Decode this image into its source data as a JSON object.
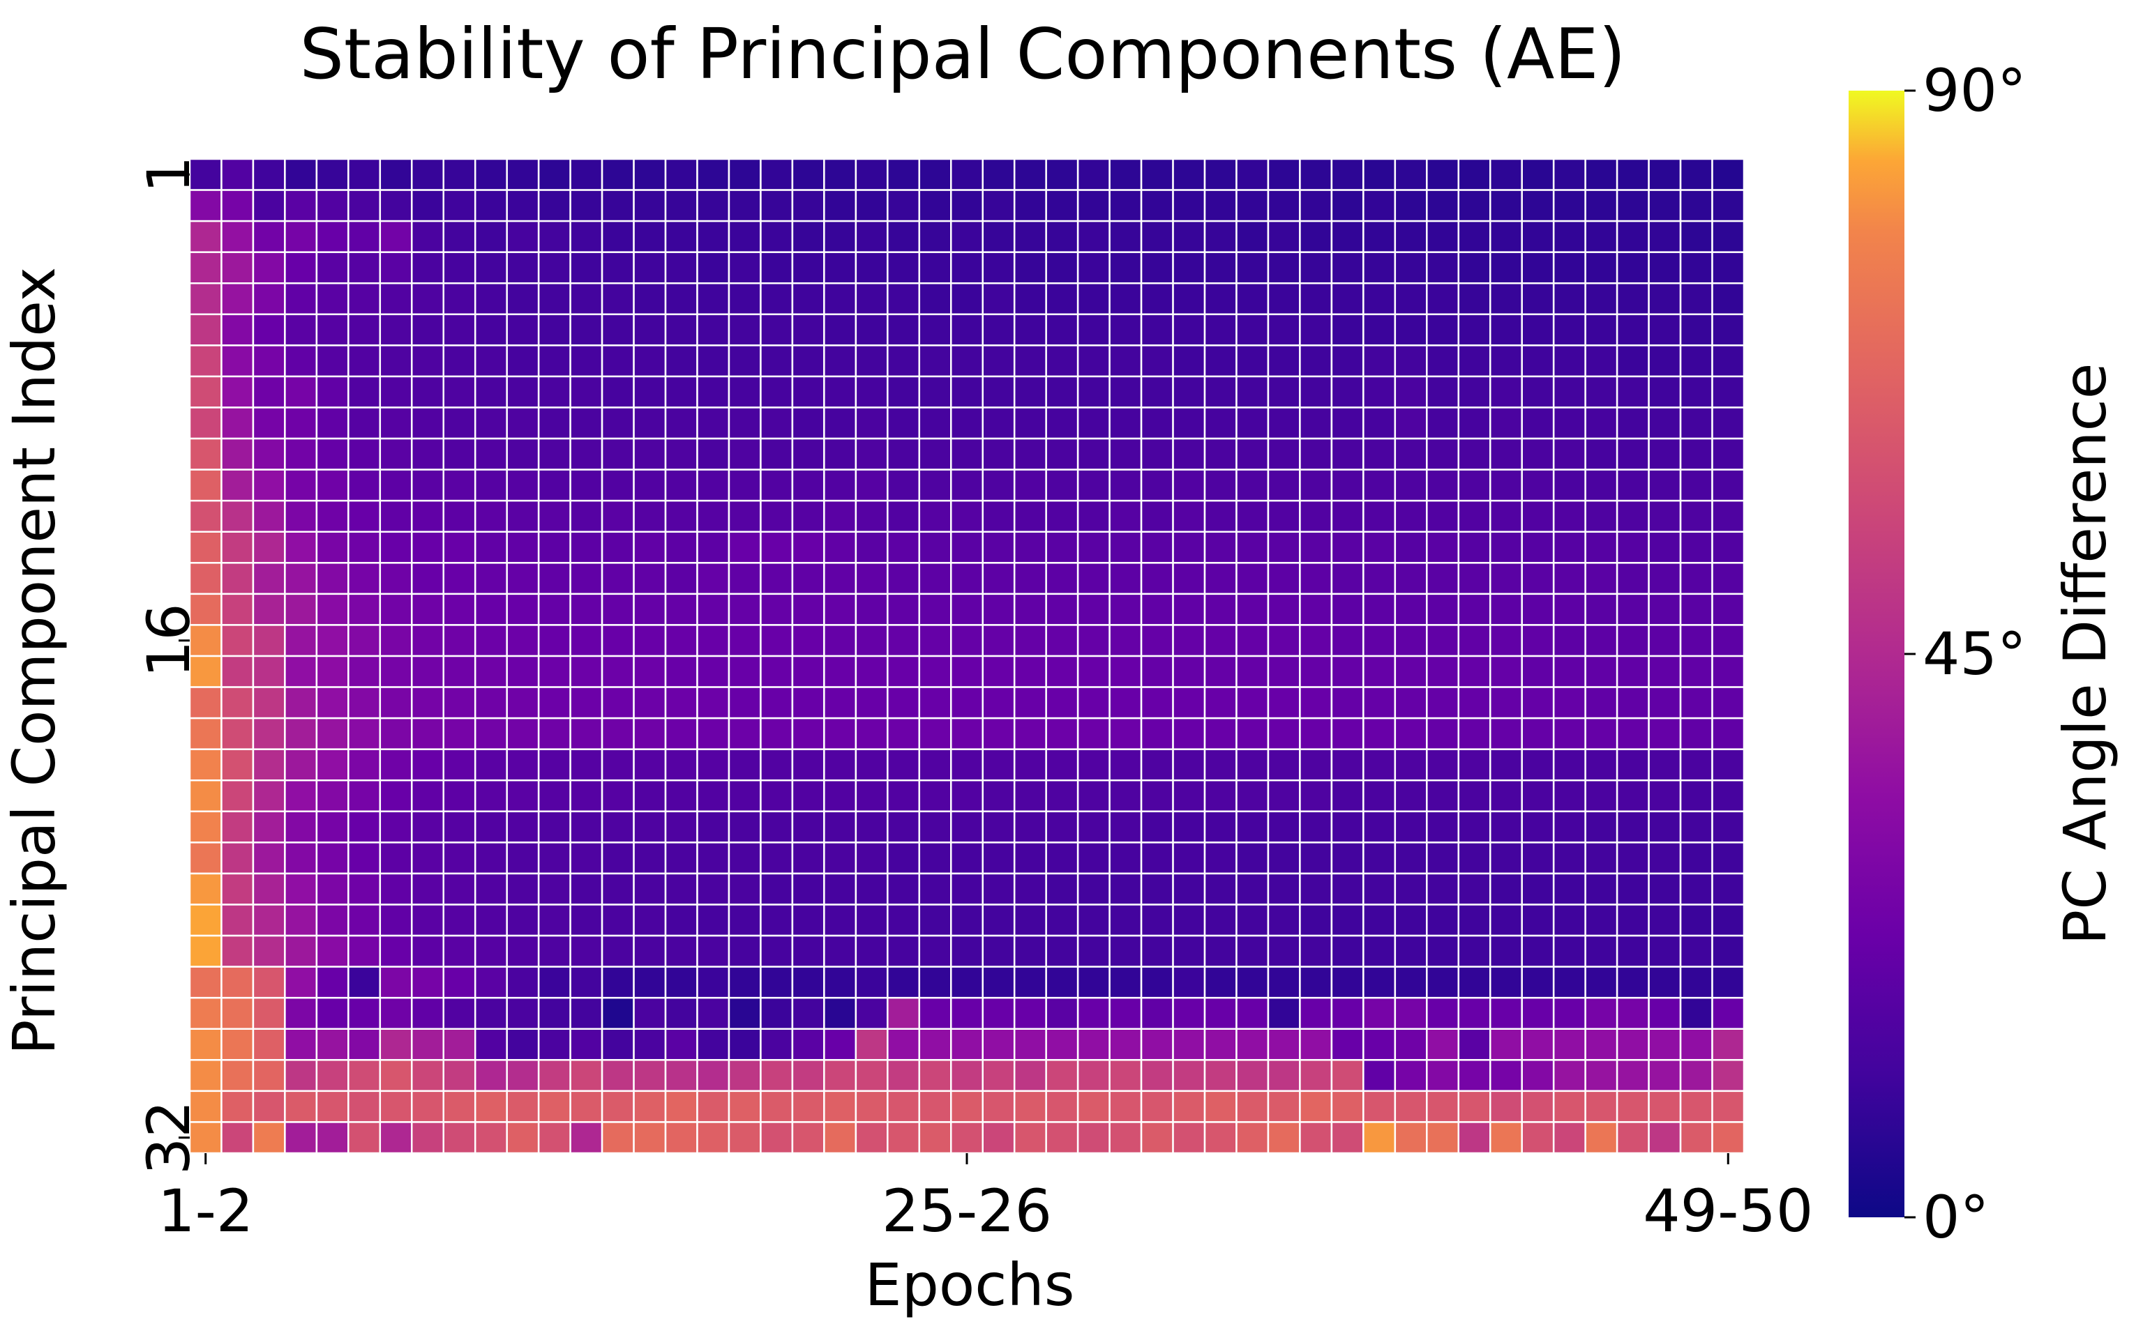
{
  "chart_data": {
    "type": "heatmap",
    "title": "Stability of Principal Components (AE)",
    "xlabel": "Epochs",
    "ylabel": "Principal Component Index",
    "x_ticks": [
      "1-2",
      "25-26",
      "49-50"
    ],
    "x_tick_positions": [
      0,
      24,
      48
    ],
    "y_ticks": [
      "1",
      "16",
      "32"
    ],
    "y_tick_positions": [
      0,
      15,
      31
    ],
    "n_cols": 49,
    "n_rows": 32,
    "colormap": "plasma",
    "colorbar": {
      "label": "PC Angle Difference",
      "range": [
        0,
        90
      ],
      "ticks": [
        "0°",
        "45°",
        "90°"
      ],
      "tick_values": [
        0,
        45,
        90
      ]
    },
    "grid_line_color": "#ffffff",
    "values": [
      [
        12,
        16,
        11,
        8,
        9,
        10,
        8,
        9,
        9,
        8,
        8,
        7,
        8,
        7,
        7,
        8,
        7,
        7,
        8,
        7,
        7,
        8,
        7,
        7,
        8,
        7,
        7,
        7,
        8,
        7,
        7,
        7,
        7,
        8,
        7,
        7,
        7,
        6,
        7,
        6,
        6,
        7,
        6,
        7,
        6,
        6,
        6,
        6,
        5
      ],
      [
        30,
        26,
        14,
        18,
        16,
        14,
        12,
        10,
        11,
        10,
        10,
        9,
        9,
        9,
        9,
        9,
        9,
        9,
        9,
        9,
        8,
        8,
        9,
        8,
        8,
        9,
        8,
        8,
        8,
        8,
        8,
        8,
        8,
        8,
        8,
        8,
        7,
        8,
        7,
        7,
        7,
        7,
        7,
        7,
        7,
        7,
        7,
        7,
        7
      ],
      [
        44,
        35,
        25,
        26,
        22,
        20,
        25,
        14,
        12,
        11,
        13,
        12,
        11,
        10,
        10,
        10,
        10,
        10,
        10,
        9,
        9,
        10,
        9,
        9,
        10,
        9,
        9,
        9,
        10,
        9,
        9,
        9,
        9,
        8,
        9,
        8,
        8,
        8,
        8,
        8,
        8,
        8,
        8,
        8,
        8,
        8,
        8,
        7,
        7
      ],
      [
        44,
        38,
        30,
        22,
        18,
        17,
        18,
        14,
        13,
        12,
        12,
        12,
        11,
        11,
        11,
        11,
        10,
        11,
        10,
        10,
        10,
        10,
        10,
        10,
        10,
        10,
        9,
        9,
        10,
        9,
        9,
        9,
        9,
        9,
        9,
        9,
        9,
        9,
        9,
        9,
        8,
        8,
        8,
        8,
        8,
        8,
        8,
        8,
        8
      ],
      [
        46,
        36,
        28,
        20,
        18,
        17,
        16,
        15,
        14,
        13,
        12,
        12,
        12,
        12,
        11,
        11,
        11,
        11,
        11,
        11,
        11,
        11,
        11,
        10,
        10,
        11,
        10,
        10,
        10,
        10,
        10,
        10,
        10,
        10,
        10,
        10,
        10,
        10,
        10,
        10,
        9,
        9,
        9,
        9,
        9,
        9,
        9,
        9,
        8
      ],
      [
        50,
        30,
        22,
        18,
        17,
        16,
        15,
        14,
        14,
        13,
        13,
        12,
        12,
        12,
        12,
        12,
        12,
        12,
        12,
        12,
        11,
        11,
        11,
        11,
        11,
        11,
        11,
        11,
        11,
        11,
        11,
        11,
        11,
        11,
        11,
        11,
        10,
        10,
        10,
        10,
        10,
        10,
        10,
        10,
        10,
        10,
        10,
        9,
        9
      ],
      [
        55,
        32,
        26,
        20,
        17,
        16,
        15,
        15,
        14,
        14,
        13,
        13,
        13,
        13,
        13,
        12,
        12,
        12,
        12,
        12,
        12,
        12,
        12,
        12,
        12,
        12,
        12,
        12,
        12,
        12,
        12,
        11,
        11,
        11,
        11,
        11,
        11,
        12,
        12,
        11,
        11,
        11,
        11,
        11,
        11,
        10,
        10,
        10,
        10
      ],
      [
        58,
        34,
        24,
        26,
        20,
        16,
        16,
        15,
        15,
        14,
        14,
        14,
        14,
        13,
        13,
        13,
        13,
        13,
        13,
        13,
        13,
        13,
        12,
        12,
        12,
        12,
        12,
        12,
        12,
        12,
        12,
        12,
        12,
        12,
        12,
        12,
        12,
        13,
        14,
        12,
        12,
        13,
        12,
        12,
        12,
        12,
        11,
        11,
        11
      ],
      [
        56,
        36,
        26,
        24,
        20,
        17,
        17,
        16,
        15,
        15,
        15,
        14,
        14,
        14,
        14,
        14,
        14,
        14,
        14,
        13,
        13,
        14,
        13,
        13,
        13,
        13,
        13,
        13,
        13,
        13,
        13,
        13,
        13,
        13,
        13,
        13,
        13,
        13,
        15,
        13,
        13,
        14,
        13,
        13,
        13,
        12,
        12,
        12,
        12
      ],
      [
        62,
        38,
        30,
        25,
        21,
        19,
        18,
        17,
        16,
        16,
        15,
        15,
        15,
        15,
        15,
        15,
        14,
        15,
        14,
        14,
        14,
        15,
        14,
        14,
        14,
        14,
        14,
        14,
        14,
        14,
        14,
        14,
        14,
        14,
        14,
        14,
        14,
        14,
        14,
        14,
        14,
        14,
        14,
        14,
        13,
        13,
        13,
        13,
        13
      ],
      [
        66,
        40,
        34,
        26,
        24,
        20,
        19,
        18,
        18,
        17,
        17,
        16,
        16,
        16,
        16,
        16,
        16,
        16,
        16,
        16,
        16,
        17,
        15,
        15,
        15,
        15,
        16,
        15,
        15,
        15,
        15,
        16,
        15,
        15,
        15,
        15,
        15,
        15,
        15,
        15,
        15,
        15,
        15,
        14,
        14,
        14,
        14,
        14,
        14
      ],
      [
        60,
        48,
        38,
        28,
        24,
        22,
        20,
        20,
        19,
        19,
        18,
        18,
        17,
        18,
        17,
        17,
        17,
        17,
        17,
        17,
        18,
        17,
        16,
        17,
        17,
        16,
        16,
        16,
        16,
        17,
        16,
        17,
        16,
        16,
        16,
        16,
        16,
        16,
        16,
        16,
        16,
        16,
        16,
        16,
        15,
        15,
        15,
        15,
        15
      ],
      [
        66,
        52,
        44,
        34,
        27,
        24,
        22,
        22,
        22,
        20,
        20,
        19,
        19,
        19,
        20,
        19,
        19,
        22,
        22,
        22,
        20,
        18,
        19,
        18,
        18,
        18,
        18,
        18,
        18,
        18,
        18,
        18,
        18,
        18,
        18,
        18,
        18,
        18,
        17,
        18,
        17,
        17,
        17,
        17,
        17,
        17,
        16,
        16,
        16
      ],
      [
        66,
        52,
        40,
        36,
        30,
        26,
        24,
        22,
        22,
        21,
        21,
        20,
        20,
        20,
        20,
        19,
        21,
        20,
        20,
        20,
        20,
        20,
        19,
        19,
        19,
        19,
        19,
        19,
        19,
        19,
        19,
        19,
        19,
        19,
        19,
        19,
        18,
        18,
        18,
        18,
        18,
        18,
        18,
        18,
        18,
        17,
        17,
        17,
        17
      ],
      [
        70,
        54,
        42,
        38,
        32,
        28,
        25,
        24,
        23,
        22,
        22,
        21,
        21,
        21,
        21,
        21,
        21,
        21,
        21,
        21,
        21,
        20,
        20,
        20,
        20,
        20,
        20,
        20,
        20,
        20,
        20,
        20,
        20,
        20,
        20,
        20,
        19,
        19,
        19,
        19,
        19,
        19,
        19,
        19,
        18,
        18,
        18,
        18,
        18
      ],
      [
        80,
        56,
        50,
        36,
        34,
        30,
        27,
        25,
        24,
        23,
        23,
        22,
        22,
        22,
        22,
        22,
        22,
        22,
        22,
        22,
        21,
        21,
        21,
        21,
        21,
        21,
        21,
        21,
        21,
        21,
        21,
        21,
        21,
        21,
        21,
        21,
        20,
        20,
        20,
        20,
        20,
        20,
        20,
        19,
        19,
        19,
        19,
        19,
        19
      ],
      [
        82,
        52,
        48,
        34,
        33,
        28,
        26,
        25,
        24,
        24,
        23,
        23,
        23,
        23,
        23,
        22,
        22,
        22,
        22,
        22,
        22,
        22,
        22,
        22,
        22,
        22,
        22,
        22,
        22,
        22,
        21,
        21,
        21,
        21,
        21,
        21,
        21,
        21,
        21,
        21,
        21,
        21,
        20,
        20,
        20,
        20,
        20,
        20,
        20
      ],
      [
        70,
        58,
        50,
        38,
        34,
        30,
        27,
        26,
        25,
        24,
        24,
        23,
        23,
        23,
        23,
        23,
        23,
        22,
        22,
        22,
        22,
        22,
        22,
        22,
        22,
        22,
        22,
        22,
        22,
        22,
        22,
        22,
        22,
        22,
        22,
        22,
        21,
        21,
        21,
        21,
        21,
        21,
        21,
        21,
        20,
        20,
        20,
        20,
        20
      ],
      [
        74,
        58,
        48,
        40,
        36,
        32,
        28,
        27,
        26,
        25,
        25,
        24,
        24,
        24,
        24,
        23,
        23,
        23,
        23,
        23,
        23,
        23,
        23,
        23,
        23,
        23,
        23,
        23,
        23,
        23,
        22,
        22,
        22,
        22,
        22,
        22,
        22,
        22,
        22,
        21,
        21,
        21,
        21,
        21,
        21,
        21,
        21,
        20,
        20
      ],
      [
        78,
        60,
        46,
        38,
        34,
        28,
        24,
        22,
        20,
        18,
        18,
        17,
        17,
        17,
        17,
        17,
        17,
        16,
        16,
        16,
        16,
        16,
        16,
        16,
        16,
        16,
        16,
        16,
        16,
        16,
        15,
        15,
        15,
        15,
        15,
        15,
        15,
        15,
        15,
        15,
        15,
        14,
        14,
        14,
        14,
        14,
        14,
        14,
        14
      ],
      [
        80,
        56,
        44,
        34,
        30,
        26,
        22,
        20,
        19,
        18,
        18,
        17,
        17,
        17,
        16,
        16,
        16,
        16,
        16,
        16,
        16,
        16,
        16,
        16,
        16,
        15,
        15,
        15,
        15,
        15,
        15,
        15,
        15,
        15,
        15,
        15,
        14,
        14,
        14,
        14,
        14,
        14,
        14,
        14,
        14,
        14,
        14,
        13,
        13
      ],
      [
        78,
        52,
        40,
        30,
        26,
        22,
        20,
        18,
        17,
        16,
        16,
        15,
        15,
        15,
        15,
        15,
        14,
        14,
        14,
        14,
        14,
        14,
        14,
        14,
        14,
        14,
        14,
        14,
        14,
        14,
        13,
        13,
        13,
        13,
        13,
        13,
        13,
        13,
        13,
        13,
        13,
        13,
        13,
        13,
        12,
        12,
        12,
        12,
        12
      ],
      [
        74,
        50,
        38,
        30,
        26,
        22,
        19,
        18,
        17,
        16,
        15,
        15,
        15,
        14,
        14,
        14,
        14,
        14,
        14,
        14,
        14,
        14,
        13,
        13,
        13,
        13,
        13,
        13,
        13,
        13,
        13,
        13,
        13,
        12,
        12,
        12,
        12,
        12,
        12,
        12,
        12,
        12,
        12,
        12,
        12,
        12,
        12,
        11,
        11
      ],
      [
        82,
        52,
        42,
        34,
        28,
        24,
        20,
        18,
        17,
        16,
        15,
        15,
        14,
        14,
        14,
        14,
        14,
        14,
        13,
        13,
        13,
        13,
        13,
        13,
        13,
        13,
        13,
        12,
        12,
        12,
        12,
        12,
        12,
        12,
        12,
        12,
        12,
        12,
        12,
        12,
        12,
        11,
        11,
        11,
        11,
        11,
        11,
        11,
        11
      ],
      [
        84,
        50,
        44,
        36,
        28,
        24,
        20,
        18,
        17,
        16,
        15,
        15,
        14,
        14,
        14,
        13,
        13,
        13,
        13,
        13,
        13,
        13,
        13,
        12,
        12,
        12,
        12,
        12,
        12,
        12,
        12,
        12,
        12,
        12,
        12,
        11,
        11,
        11,
        11,
        11,
        11,
        11,
        11,
        11,
        11,
        11,
        11,
        10,
        10
      ],
      [
        84,
        52,
        46,
        38,
        32,
        26,
        22,
        19,
        18,
        17,
        16,
        15,
        15,
        14,
        14,
        14,
        14,
        13,
        13,
        13,
        13,
        13,
        13,
        13,
        12,
        12,
        12,
        12,
        12,
        12,
        12,
        12,
        12,
        12,
        12,
        12,
        11,
        11,
        11,
        11,
        11,
        11,
        11,
        11,
        11,
        11,
        11,
        11,
        10
      ],
      [
        72,
        70,
        62,
        34,
        22,
        10,
        28,
        26,
        22,
        18,
        14,
        10,
        12,
        8,
        8,
        8,
        10,
        8,
        8,
        8,
        8,
        10,
        8,
        8,
        8,
        8,
        8,
        8,
        8,
        8,
        8,
        10,
        8,
        8,
        8,
        8,
        8,
        8,
        8,
        8,
        8,
        8,
        8,
        8,
        8,
        8,
        8,
        8,
        8
      ],
      [
        76,
        72,
        64,
        28,
        22,
        22,
        24,
        20,
        16,
        14,
        14,
        12,
        12,
        4,
        14,
        12,
        14,
        6,
        10,
        12,
        6,
        14,
        40,
        22,
        22,
        22,
        22,
        18,
        22,
        22,
        20,
        22,
        22,
        22,
        8,
        22,
        22,
        26,
        26,
        22,
        22,
        22,
        22,
        22,
        26,
        26,
        22,
        8,
        22
      ],
      [
        80,
        74,
        66,
        34,
        36,
        30,
        44,
        40,
        40,
        16,
        12,
        14,
        16,
        12,
        14,
        18,
        12,
        10,
        14,
        18,
        22,
        50,
        34,
        34,
        34,
        34,
        34,
        34,
        34,
        34,
        34,
        34,
        34,
        34,
        34,
        34,
        22,
        22,
        24,
        34,
        18,
        34,
        34,
        34,
        34,
        34,
        34,
        34,
        44
      ],
      [
        80,
        72,
        68,
        50,
        54,
        58,
        62,
        56,
        52,
        44,
        46,
        52,
        56,
        50,
        50,
        48,
        46,
        50,
        54,
        52,
        56,
        56,
        52,
        56,
        52,
        54,
        50,
        56,
        54,
        56,
        52,
        52,
        52,
        50,
        50,
        54,
        58,
        20,
        26,
        30,
        26,
        26,
        30,
        36,
        36,
        36,
        36,
        38,
        48
      ],
      [
        80,
        66,
        62,
        64,
        62,
        60,
        62,
        62,
        64,
        66,
        64,
        66,
        64,
        64,
        66,
        68,
        64,
        66,
        64,
        64,
        66,
        64,
        62,
        62,
        64,
        62,
        64,
        62,
        64,
        62,
        62,
        64,
        66,
        64,
        64,
        68,
        66,
        62,
        62,
        62,
        62,
        58,
        60,
        62,
        62,
        62,
        62,
        62,
        62
      ],
      [
        80,
        56,
        76,
        40,
        40,
        60,
        44,
        54,
        58,
        60,
        66,
        60,
        44,
        70,
        70,
        68,
        66,
        64,
        60,
        62,
        70,
        60,
        62,
        64,
        60,
        56,
        62,
        60,
        58,
        60,
        64,
        60,
        62,
        66,
        70,
        60,
        58,
        82,
        72,
        72,
        50,
        74,
        60,
        56,
        74,
        60,
        50,
        64,
        68
      ]
    ]
  }
}
